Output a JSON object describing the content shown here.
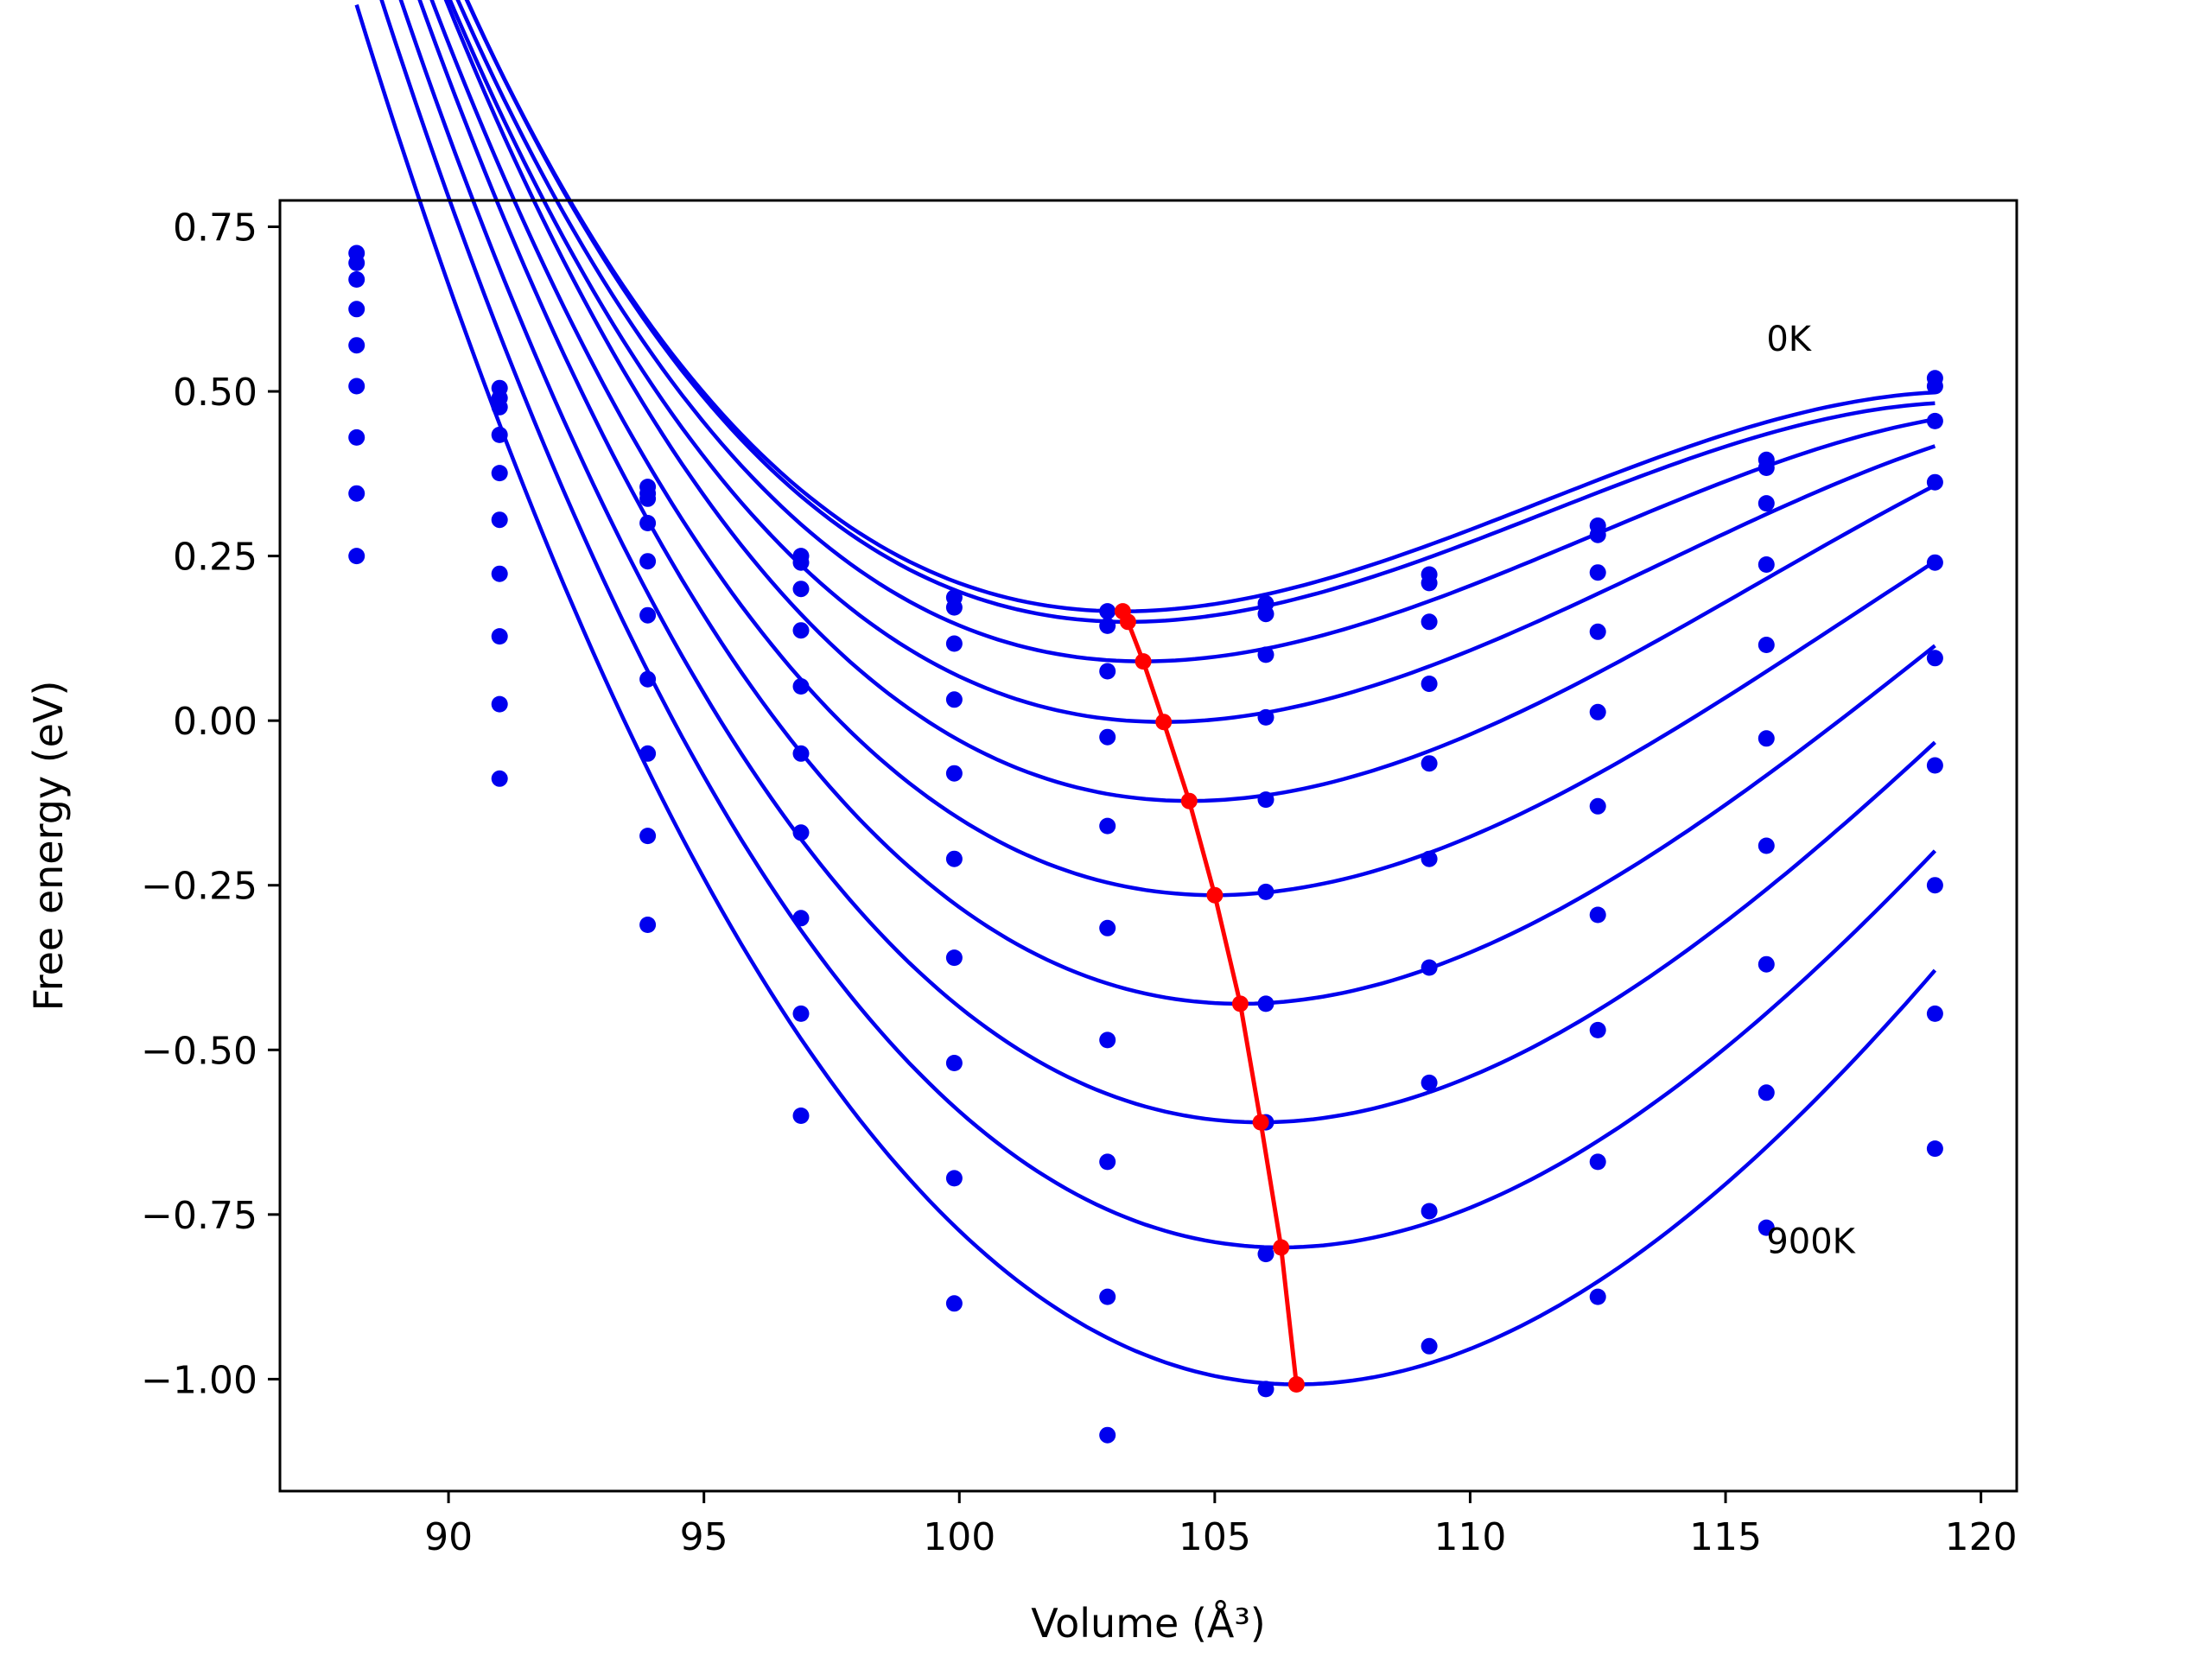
{
  "chart_data": {
    "type": "scatter",
    "xlabel": "Volume (Å³)",
    "ylabel": "Free energy (eV)",
    "xlim": [
      86.7,
      120.7
    ],
    "ylim": [
      -1.17,
      0.79
    ],
    "grid": false,
    "x_ticks": [
      90,
      95,
      100,
      105,
      110,
      115,
      120
    ],
    "y_ticks": [
      0.75,
      0.5,
      0.25,
      0.0,
      -0.25,
      -0.5,
      -0.75,
      -1.0
    ],
    "x_tick_labels": [
      "90",
      "95",
      "100",
      "105",
      "110",
      "115",
      "120"
    ],
    "y_tick_labels": [
      "0.75",
      "0.50",
      "0.25",
      "0.00",
      "−0.25",
      "−0.50",
      "−0.75",
      "−1.00"
    ],
    "annotations": [
      {
        "text": "0K",
        "x": 115.8,
        "y": 0.58
      },
      {
        "text": "900K",
        "x": 115.8,
        "y": -0.79
      }
    ],
    "colors": {
      "data": "#0000ee",
      "minima": "#ff0000"
    },
    "x": [
      88.2,
      91.0,
      93.9,
      96.9,
      99.9,
      102.9,
      106.0,
      109.2,
      112.5,
      115.8,
      119.1
    ],
    "series": [
      {
        "points_y": [
          0.71,
          0.505,
          0.355,
          0.25,
          0.187,
          0.166,
          0.178,
          0.222,
          0.296,
          0.396,
          0.52
        ],
        "fit": {
          "v0": 103.2,
          "e0": 0.166,
          "a": 0.0037,
          "b": 0.00015
        }
      },
      {
        "points_y": [
          0.695,
          0.49,
          0.345,
          0.24,
          0.172,
          0.144,
          0.162,
          0.209,
          0.282,
          0.384,
          0.508
        ],
        "fit": {
          "v0": 103.3,
          "e0": 0.15,
          "a": 0.0037,
          "b": 0.00015
        }
      },
      {
        "points_y": [
          0.67,
          0.476,
          0.337,
          0.2,
          0.117,
          0.075,
          0.1,
          0.15,
          0.225,
          0.33,
          0.455
        ],
        "fit": {
          "v0": 103.6,
          "e0": 0.09,
          "a": 0.0037,
          "b": 0.00014
        }
      },
      {
        "points_y": [
          0.625,
          0.434,
          0.3,
          0.137,
          0.032,
          -0.025,
          0.005,
          0.056,
          0.135,
          0.237,
          0.362
        ],
        "fit": {
          "v0": 104.0,
          "e0": -0.002,
          "a": 0.0038,
          "b": 0.00013
        }
      },
      {
        "points_y": [
          0.57,
          0.376,
          0.242,
          0.052,
          -0.08,
          -0.16,
          -0.12,
          -0.065,
          0.013,
          0.115,
          0.24
        ],
        "fit": {
          "v0": 104.5,
          "e0": -0.122,
          "a": 0.004,
          "b": 0.00012
        }
      },
      {
        "points_y": [
          0.508,
          0.305,
          0.16,
          -0.05,
          -0.21,
          -0.315,
          -0.26,
          -0.21,
          -0.13,
          -0.027,
          0.095
        ],
        "fit": {
          "v0": 105.0,
          "e0": -0.265,
          "a": 0.0041,
          "b": 0.00011
        }
      },
      {
        "points_y": [
          0.43,
          0.223,
          0.063,
          -0.17,
          -0.36,
          -0.485,
          -0.43,
          -0.375,
          -0.295,
          -0.19,
          -0.068
        ],
        "fit": {
          "v0": 105.5,
          "e0": -0.43,
          "a": 0.0043,
          "b": 0.0001
        }
      },
      {
        "points_y": [
          0.345,
          0.128,
          -0.05,
          -0.3,
          -0.52,
          -0.67,
          -0.61,
          -0.55,
          -0.47,
          -0.37,
          -0.25
        ],
        "fit": {
          "v0": 105.9,
          "e0": -0.61,
          "a": 0.0045,
          "b": 9e-05
        }
      },
      {
        "points_y": [
          0.25,
          0.025,
          -0.175,
          -0.445,
          -0.695,
          -0.875,
          -0.81,
          -0.745,
          -0.67,
          -0.565,
          -0.445
        ],
        "fit": {
          "v0": 106.3,
          "e0": -0.8,
          "a": 0.0047,
          "b": 8e-05
        }
      },
      {
        "points_y": [
          null,
          -0.088,
          -0.31,
          -0.6,
          -0.885,
          -1.085,
          -1.015,
          -0.95,
          -0.875,
          -0.77,
          -0.65
        ],
        "fit": {
          "v0": 106.6,
          "e0": -1.008,
          "a": 0.0049,
          "b": 7e-05
        }
      }
    ],
    "minima": {
      "x": [
        103.2,
        103.3,
        103.6,
        104.0,
        104.5,
        105.0,
        105.5,
        105.9,
        106.3,
        106.6
      ],
      "y": [
        0.166,
        0.15,
        0.09,
        -0.002,
        -0.122,
        -0.265,
        -0.43,
        -0.61,
        -0.8,
        -1.008
      ]
    }
  }
}
